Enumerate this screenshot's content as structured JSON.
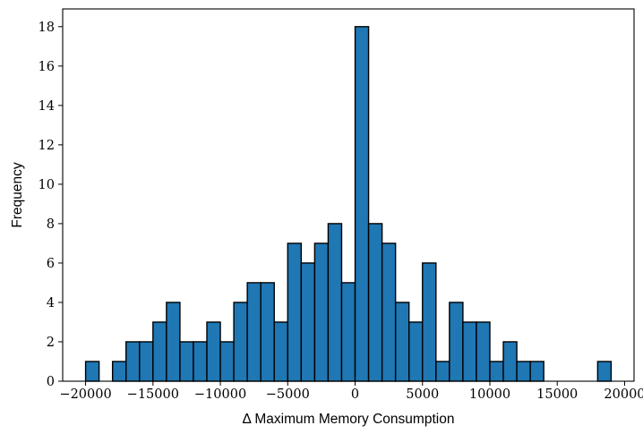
{
  "chart_data": {
    "type": "bar",
    "xlabel": "Δ Maximum Memory Consumption",
    "ylabel": "Frequency",
    "xlim": [
      -21700,
      20700
    ],
    "ylim": [
      0,
      18.9
    ],
    "grid": false,
    "bin_width": 1000,
    "bins": [
      {
        "left": -20000,
        "count": 1
      },
      {
        "left": -19000,
        "count": 0
      },
      {
        "left": -18000,
        "count": 1
      },
      {
        "left": -17000,
        "count": 2
      },
      {
        "left": -16000,
        "count": 2
      },
      {
        "left": -15000,
        "count": 3
      },
      {
        "left": -14000,
        "count": 4
      },
      {
        "left": -13000,
        "count": 2
      },
      {
        "left": -12000,
        "count": 2
      },
      {
        "left": -11000,
        "count": 3
      },
      {
        "left": -10000,
        "count": 2
      },
      {
        "left": -9000,
        "count": 4
      },
      {
        "left": -8000,
        "count": 5
      },
      {
        "left": -7000,
        "count": 5
      },
      {
        "left": -6000,
        "count": 3
      },
      {
        "left": -5000,
        "count": 7
      },
      {
        "left": -4000,
        "count": 6
      },
      {
        "left": -3000,
        "count": 7
      },
      {
        "left": -2000,
        "count": 8
      },
      {
        "left": -1000,
        "count": 5
      },
      {
        "left": 0,
        "count": 18
      },
      {
        "left": 1000,
        "count": 8
      },
      {
        "left": 2000,
        "count": 7
      },
      {
        "left": 3000,
        "count": 4
      },
      {
        "left": 4000,
        "count": 3
      },
      {
        "left": 5000,
        "count": 6
      },
      {
        "left": 6000,
        "count": 1
      },
      {
        "left": 7000,
        "count": 4
      },
      {
        "left": 8000,
        "count": 3
      },
      {
        "left": 9000,
        "count": 3
      },
      {
        "left": 10000,
        "count": 1
      },
      {
        "left": 11000,
        "count": 2
      },
      {
        "left": 12000,
        "count": 1
      },
      {
        "left": 13000,
        "count": 1
      },
      {
        "left": 14000,
        "count": 0
      },
      {
        "left": 15000,
        "count": 0
      },
      {
        "left": 16000,
        "count": 0
      },
      {
        "left": 17000,
        "count": 0
      },
      {
        "left": 18000,
        "count": 1
      }
    ],
    "xticks": [
      -20000,
      -15000,
      -10000,
      -5000,
      0,
      5000,
      10000,
      15000,
      20000
    ],
    "xtick_labels": [
      "−20000",
      "−15000",
      "−10000",
      "−5000",
      "0",
      "5000",
      "10000",
      "15000",
      "20000"
    ],
    "yticks": [
      0,
      2,
      4,
      6,
      8,
      10,
      12,
      14,
      16,
      18
    ],
    "ytick_labels": [
      "0",
      "2",
      "4",
      "6",
      "8",
      "10",
      "12",
      "14",
      "16",
      "18"
    ],
    "colors": {
      "bar_fill": "#1f77b4",
      "bar_edge": "#000000"
    }
  }
}
